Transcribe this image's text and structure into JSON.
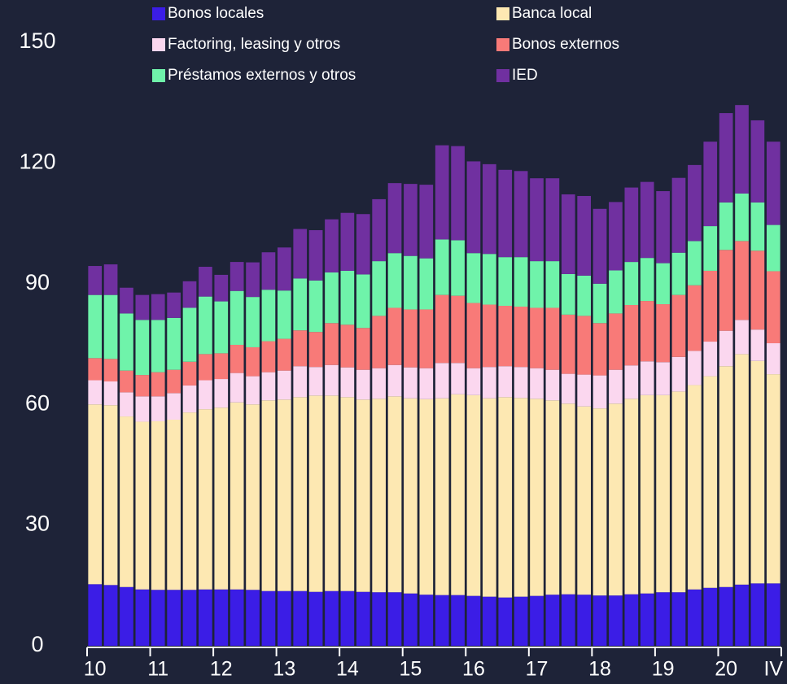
{
  "chart_data": {
    "type": "stacked_bar",
    "categories": [
      "10",
      null,
      null,
      null,
      "11",
      null,
      null,
      null,
      "12",
      null,
      null,
      null,
      "13",
      null,
      null,
      null,
      "14",
      null,
      null,
      null,
      "15",
      null,
      null,
      null,
      "16",
      null,
      null,
      null,
      "17",
      null,
      null,
      null,
      "18",
      null,
      null,
      null,
      "19",
      null,
      null,
      null,
      "20",
      null,
      null,
      "IV"
    ],
    "series": [
      {
        "name": "Bonos locales",
        "color": "#3b1de6",
        "values": [
          15.3,
          15.1,
          14.6,
          14.0,
          13.9,
          13.9,
          13.9,
          14.0,
          14.0,
          14.0,
          13.9,
          13.6,
          13.6,
          13.6,
          13.4,
          13.6,
          13.6,
          13.4,
          13.3,
          13.3,
          13.0,
          12.7,
          12.6,
          12.6,
          12.4,
          12.2,
          12.0,
          12.2,
          12.4,
          12.7,
          12.8,
          12.7,
          12.5,
          12.5,
          12.8,
          13.0,
          13.3,
          13.3,
          14.0,
          14.4,
          14.6,
          15.2,
          15.5,
          15.5
        ]
      },
      {
        "name": "Banca local",
        "color": "#fde8b2",
        "values": [
          44.7,
          44.7,
          42.4,
          41.7,
          41.9,
          42.3,
          44.1,
          44.8,
          45.2,
          46.5,
          46.1,
          47.4,
          47.6,
          48.2,
          48.8,
          48.6,
          48.2,
          47.8,
          48.1,
          48.7,
          48.5,
          48.6,
          48.9,
          49.9,
          49.9,
          49.3,
          49.8,
          49.4,
          49.0,
          48.3,
          47.4,
          46.8,
          46.5,
          47.7,
          48.6,
          49.3,
          49.0,
          49.9,
          50.8,
          52.6,
          54.9,
          57.3,
          55.3,
          52.0
        ]
      },
      {
        "name": "Factoring, leasing y otros",
        "color": "#fbd7ef",
        "values": [
          6.0,
          5.9,
          6.0,
          6.3,
          6.2,
          6.6,
          6.7,
          7.2,
          7.1,
          7.3,
          7.0,
          7.0,
          7.2,
          7.7,
          7.1,
          7.6,
          7.4,
          7.4,
          7.6,
          7.8,
          7.7,
          7.7,
          8.8,
          7.8,
          6.7,
          7.8,
          7.7,
          7.7,
          7.6,
          7.6,
          7.4,
          7.9,
          8.2,
          8.4,
          8.3,
          8.4,
          8.2,
          8.6,
          8.5,
          8.6,
          8.8,
          8.5,
          7.8,
          7.7
        ]
      },
      {
        "name": "Bonos externos",
        "color": "#f87a78",
        "values": [
          5.5,
          5.6,
          5.4,
          5.3,
          6.0,
          5.8,
          5.9,
          6.5,
          6.4,
          7.0,
          7.2,
          7.7,
          7.9,
          8.9,
          8.7,
          10.4,
          10.6,
          10.4,
          13.0,
          14.2,
          14.4,
          14.6,
          16.9,
          16.7,
          16.2,
          15.5,
          15.0,
          15.0,
          15.0,
          15.4,
          14.7,
          14.6,
          13.0,
          14.0,
          15.0,
          15.0,
          14.4,
          15.4,
          16.3,
          17.6,
          20.1,
          19.6,
          19.6,
          17.9
        ]
      },
      {
        "name": "Préstamos externos y otros",
        "color": "#6ff3aa",
        "values": [
          15.7,
          15.9,
          14.2,
          13.7,
          13.0,
          12.9,
          13.4,
          14.3,
          12.9,
          13.4,
          12.5,
          12.8,
          12.0,
          12.9,
          12.8,
          12.6,
          13.4,
          13.3,
          13.6,
          13.6,
          13.3,
          12.7,
          13.8,
          13.8,
          12.4,
          12.6,
          12.1,
          12.3,
          11.6,
          11.6,
          10.1,
          10.0,
          9.8,
          10.7,
          10.7,
          10.7,
          10.2,
          10.5,
          11.0,
          11.1,
          11.8,
          11.8,
          12.0,
          11.5
        ]
      },
      {
        "name": "IED",
        "color": "#7030a0",
        "values": [
          7.2,
          7.6,
          6.4,
          6.2,
          6.4,
          6.3,
          6.6,
          7.4,
          6.6,
          7.2,
          8.6,
          9.3,
          10.7,
          12.3,
          12.5,
          13.2,
          14.4,
          15.0,
          15.4,
          17.4,
          17.9,
          18.3,
          23.4,
          23.4,
          22.8,
          22.3,
          21.7,
          21.4,
          20.6,
          20.6,
          19.8,
          19.8,
          18.6,
          17.0,
          18.5,
          18.9,
          17.9,
          18.6,
          18.9,
          21.0,
          22.2,
          22.0,
          20.4,
          20.7
        ]
      }
    ],
    "ylim": [
      0,
      150
    ],
    "yticks": [
      0,
      30,
      60,
      90,
      120,
      150
    ],
    "grid": false
  }
}
